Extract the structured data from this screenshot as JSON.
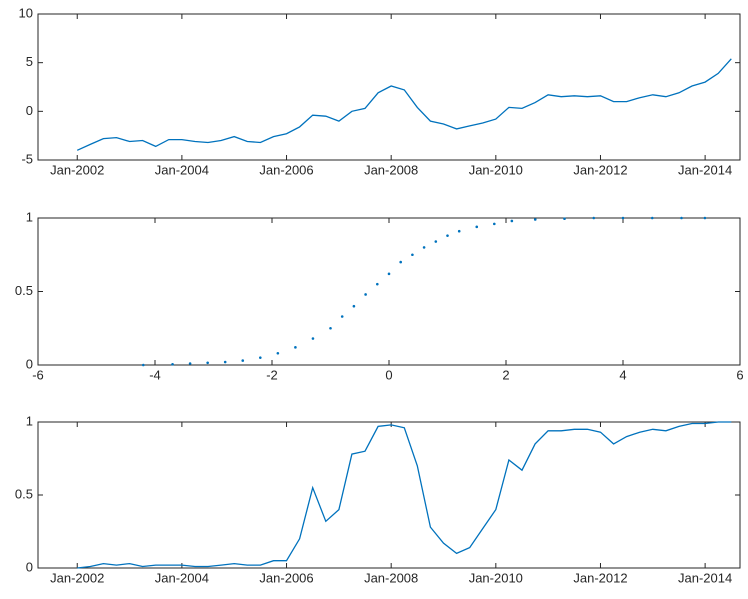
{
  "chart_data": [
    {
      "type": "line",
      "color": "#0072bd",
      "x": [
        "2002-01",
        "2002-04",
        "2002-07",
        "2002-10",
        "2003-01",
        "2003-04",
        "2003-07",
        "2003-10",
        "2004-01",
        "2004-04",
        "2004-07",
        "2004-10",
        "2005-01",
        "2005-04",
        "2005-07",
        "2005-10",
        "2006-01",
        "2006-04",
        "2006-07",
        "2006-10",
        "2007-01",
        "2007-04",
        "2007-07",
        "2007-10",
        "2008-01",
        "2008-04",
        "2008-07",
        "2008-10",
        "2009-01",
        "2009-04",
        "2009-07",
        "2009-10",
        "2010-01",
        "2010-04",
        "2010-07",
        "2010-10",
        "2011-01",
        "2011-04",
        "2011-07",
        "2011-10",
        "2012-01",
        "2012-04",
        "2012-07",
        "2012-10",
        "2013-01",
        "2013-04",
        "2013-07",
        "2013-10",
        "2014-01",
        "2014-04",
        "2014-07"
      ],
      "values": [
        -4.0,
        -3.4,
        -2.8,
        -2.7,
        -3.1,
        -3.0,
        -3.6,
        -2.9,
        -2.9,
        -3.1,
        -3.2,
        -3.0,
        -2.6,
        -3.1,
        -3.2,
        -2.6,
        -2.3,
        -1.6,
        -0.4,
        -0.5,
        -1.0,
        0.0,
        0.3,
        1.9,
        2.6,
        2.2,
        0.4,
        -1.0,
        -1.3,
        -1.8,
        -1.5,
        -1.2,
        -0.8,
        0.4,
        0.3,
        0.9,
        1.7,
        1.5,
        1.6,
        1.5,
        1.6,
        1.0,
        1.0,
        1.4,
        1.7,
        1.5,
        1.9,
        2.6,
        3.0,
        3.9,
        5.4
      ],
      "xlim": [
        "2001-04",
        "2014-09"
      ],
      "xticks": [
        {
          "value": "2002-01",
          "label": "Jan-2002"
        },
        {
          "value": "2004-01",
          "label": "Jan-2004"
        },
        {
          "value": "2006-01",
          "label": "Jan-2006"
        },
        {
          "value": "2008-01",
          "label": "Jan-2008"
        },
        {
          "value": "2010-01",
          "label": "Jan-2010"
        },
        {
          "value": "2012-01",
          "label": "Jan-2012"
        },
        {
          "value": "2014-01",
          "label": "Jan-2014"
        }
      ],
      "ylim": [
        -5,
        10
      ],
      "yticks": [
        -5,
        0,
        5,
        10
      ]
    },
    {
      "type": "scatter",
      "color": "#0072bd",
      "x": [
        -4.2,
        -3.7,
        -3.4,
        -3.1,
        -2.8,
        -2.5,
        -2.2,
        -1.9,
        -1.6,
        -1.3,
        -1.0,
        -0.8,
        -0.6,
        -0.4,
        -0.2,
        0.0,
        0.2,
        0.4,
        0.6,
        0.8,
        1.0,
        1.2,
        1.5,
        1.8,
        2.1,
        2.5,
        3.0,
        3.5,
        4.0,
        4.5,
        5.0,
        5.4
      ],
      "values": [
        0.0,
        0.005,
        0.01,
        0.015,
        0.02,
        0.03,
        0.05,
        0.08,
        0.12,
        0.18,
        0.25,
        0.33,
        0.4,
        0.48,
        0.55,
        0.62,
        0.7,
        0.75,
        0.8,
        0.84,
        0.88,
        0.91,
        0.94,
        0.96,
        0.98,
        0.99,
        0.995,
        1.0,
        1.0,
        1.0,
        1.0,
        1.0
      ],
      "xlim": [
        -6,
        6
      ],
      "xticks": [
        -6,
        -4,
        -2,
        0,
        2,
        4,
        6
      ],
      "ylim": [
        0,
        1
      ],
      "yticks": [
        0,
        0.5,
        1
      ]
    },
    {
      "type": "line",
      "color": "#0072bd",
      "x": [
        "2002-01",
        "2002-04",
        "2002-07",
        "2002-10",
        "2003-01",
        "2003-04",
        "2003-07",
        "2003-10",
        "2004-01",
        "2004-04",
        "2004-07",
        "2004-10",
        "2005-01",
        "2005-04",
        "2005-07",
        "2005-10",
        "2006-01",
        "2006-04",
        "2006-07",
        "2006-10",
        "2007-01",
        "2007-04",
        "2007-07",
        "2007-10",
        "2008-01",
        "2008-04",
        "2008-07",
        "2008-10",
        "2009-01",
        "2009-04",
        "2009-07",
        "2009-10",
        "2010-01",
        "2010-04",
        "2010-07",
        "2010-10",
        "2011-01",
        "2011-04",
        "2011-07",
        "2011-10",
        "2012-01",
        "2012-04",
        "2012-07",
        "2012-10",
        "2013-01",
        "2013-04",
        "2013-07",
        "2013-10",
        "2014-01",
        "2014-04",
        "2014-07"
      ],
      "values": [
        0.0,
        0.01,
        0.03,
        0.02,
        0.03,
        0.01,
        0.02,
        0.02,
        0.02,
        0.01,
        0.01,
        0.02,
        0.03,
        0.02,
        0.02,
        0.05,
        0.05,
        0.2,
        0.55,
        0.32,
        0.4,
        0.78,
        0.8,
        0.97,
        0.98,
        0.96,
        0.7,
        0.28,
        0.17,
        0.1,
        0.14,
        0.27,
        0.4,
        0.74,
        0.67,
        0.85,
        0.94,
        0.94,
        0.95,
        0.95,
        0.93,
        0.85,
        0.9,
        0.93,
        0.95,
        0.94,
        0.97,
        0.99,
        0.99,
        1.0,
        1.0
      ],
      "xlim": [
        "2001-04",
        "2014-09"
      ],
      "xticks": [
        {
          "value": "2002-01",
          "label": "Jan-2002"
        },
        {
          "value": "2004-01",
          "label": "Jan-2004"
        },
        {
          "value": "2006-01",
          "label": "Jan-2006"
        },
        {
          "value": "2008-01",
          "label": "Jan-2008"
        },
        {
          "value": "2010-01",
          "label": "Jan-2010"
        },
        {
          "value": "2012-01",
          "label": "Jan-2012"
        },
        {
          "value": "2014-01",
          "label": "Jan-2014"
        }
      ],
      "ylim": [
        0,
        1
      ],
      "yticks": [
        0,
        0.5,
        1
      ]
    }
  ]
}
